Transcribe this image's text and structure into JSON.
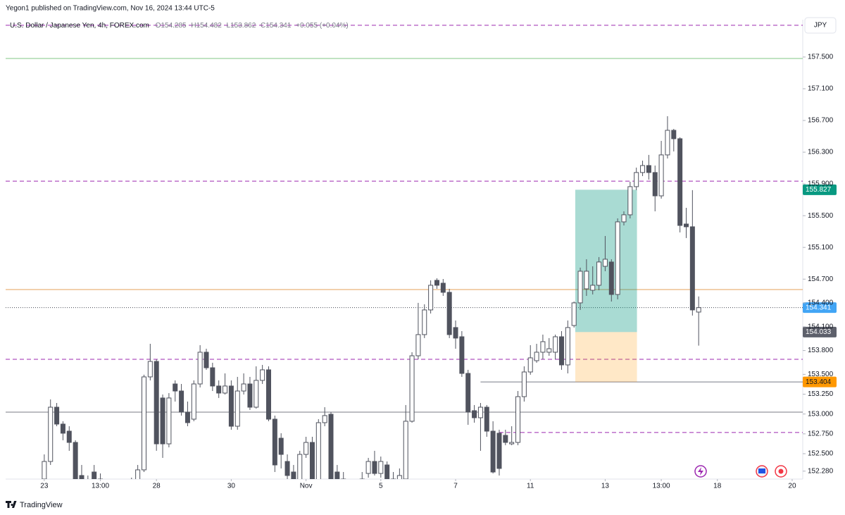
{
  "header": {
    "published": "Yegon1 published on TradingView.com, Nov 16, 2024 13:44 UTC-5",
    "currency": "JPY",
    "brand": "TradingView"
  },
  "chart_data": {
    "type": "candlestick",
    "title": "U.S. Dollar / Japanese Yen, 4h, FOREX.com",
    "ohlc_legend": [
      "O154.285",
      "H154.482",
      "L153.862",
      "C154.341",
      "+0.055 (+0.04%)"
    ],
    "up_color": "#ffffff",
    "down_color": "#50535e",
    "border_color": "#50535e",
    "open": [
      152.18,
      152.402,
      153.086,
      152.873,
      152.784,
      152.642,
      152.225,
      152.003,
      152.269,
      152.18,
      152.003,
      152.091,
      151.958,
      152.047,
      152.136,
      152.091,
      152.296,
      153.468,
      153.663,
      153.202,
      152.624,
      153.379,
      153.29,
      153.024,
      152.935,
      153.379,
      153.779,
      153.583,
      153.353,
      153.264,
      153.353,
      152.846,
      153.29,
      153.379,
      153.086,
      153.424,
      153.557,
      152.935,
      152.695,
      152.402,
      152.269,
      152.091,
      152.491,
      152.642,
      152.091,
      152.891,
      152.997,
      152.269,
      152.18,
      152.003,
      152.091,
      152.003,
      152.251,
      152.402,
      152.251,
      152.358,
      152.18,
      152.091,
      152.18,
      152.909,
      153.734,
      154.001,
      154.312,
      154.685,
      154.649,
      154.534,
      154.09,
      153.974,
      153.512,
      153.042,
      152.953,
      153.086,
      152.784,
      152.758,
      152.731,
      152.624,
      152.642,
      153.219,
      153.53,
      153.672,
      153.779,
      153.779,
      153.779,
      153.974,
      153.619,
      154.116,
      154.401,
      154.578,
      154.56,
      154.623,
      154.862,
      154.916,
      154.507,
      155.422,
      155.511,
      155.866,
      156.044,
      156.132,
      156.044,
      155.75,
      156.266,
      156.576,
      156.47,
      155.395,
      155.36,
      154.285
    ],
    "high": [
      152.491,
      153.184,
      153.139,
      152.909,
      152.846,
      152.669,
      152.358,
      152.225,
      152.358,
      152.251,
      152.136,
      152.136,
      152.136,
      152.18,
      152.198,
      152.358,
      153.495,
      153.885,
      153.69,
      153.246,
      153.264,
      153.424,
      153.379,
      153.157,
      153.424,
      153.868,
      153.823,
      153.646,
      153.424,
      153.512,
      153.424,
      153.468,
      153.512,
      153.468,
      153.601,
      153.619,
      153.601,
      152.98,
      152.758,
      152.491,
      152.358,
      152.536,
      152.713,
      152.713,
      152.935,
      153.086,
      153.024,
      152.358,
      152.269,
      152.136,
      152.18,
      152.269,
      152.447,
      152.536,
      152.464,
      152.402,
      152.269,
      152.314,
      153.113,
      153.779,
      154.401,
      154.383,
      154.685,
      154.711,
      154.702,
      154.578,
      154.179,
      154.045,
      153.557,
      153.113,
      153.139,
      153.113,
      152.909,
      152.802,
      152.802,
      152.846,
      153.29,
      153.601,
      153.868,
      153.885,
      154.001,
      153.957,
      154.001,
      154.045,
      154.179,
      154.418,
      154.845,
      154.951,
      154.862,
      154.978,
      155.244,
      154.951,
      155.466,
      155.555,
      155.928,
      156.106,
      156.194,
      156.266,
      156.132,
      156.443,
      156.754,
      156.594,
      156.488,
      155.599,
      155.822,
      154.482
    ],
    "low": [
      152.091,
      152.358,
      152.846,
      152.669,
      152.536,
      152.091,
      152.003,
      151.958,
      152.003,
      151.914,
      151.914,
      151.869,
      151.869,
      151.958,
      151.914,
      152.003,
      152.269,
      153.424,
      152.536,
      152.447,
      152.58,
      153.157,
      152.98,
      152.846,
      152.909,
      153.335,
      153.557,
      153.29,
      153.202,
      153.246,
      152.802,
      152.802,
      153.246,
      153.051,
      153.068,
      153.379,
      152.909,
      152.269,
      152.314,
      152.091,
      152.003,
      152.047,
      152.447,
      152.047,
      152.003,
      152.846,
      152.003,
      152.003,
      151.914,
      151.914,
      151.958,
      151.958,
      152.198,
      152.225,
      152.198,
      152.091,
      151.914,
      152.003,
      152.091,
      152.891,
      153.69,
      153.957,
      154.267,
      154.578,
      154.489,
      153.957,
      153.823,
      153.468,
      152.864,
      152.891,
      152.536,
      152.713,
      152.251,
      152.225,
      152.607,
      152.607,
      152.607,
      153.157,
      153.495,
      153.646,
      153.69,
      153.734,
      153.69,
      153.557,
      153.512,
      154.09,
      154.312,
      154.489,
      154.507,
      154.56,
      154.8,
      154.418,
      154.445,
      155.377,
      155.466,
      155.822,
      155.999,
      155.955,
      155.555,
      155.715,
      156.221,
      156.31,
      155.289,
      155.218,
      154.241,
      153.862
    ],
    "close": [
      152.402,
      153.086,
      152.873,
      152.758,
      152.642,
      152.18,
      152.091,
      152.136,
      152.091,
      152.003,
      152.091,
      151.958,
      152.091,
      152.136,
      152.003,
      152.296,
      153.468,
      153.663,
      152.624,
      152.624,
      153.202,
      153.29,
      153.024,
      152.891,
      153.379,
      153.779,
      153.583,
      153.353,
      153.264,
      153.353,
      152.846,
      153.29,
      153.379,
      153.086,
      153.424,
      153.557,
      152.935,
      152.358,
      152.491,
      152.225,
      152.091,
      152.491,
      152.642,
      152.091,
      152.891,
      152.98,
      152.091,
      152.091,
      152.003,
      152.091,
      152.003,
      152.18,
      152.402,
      152.251,
      152.402,
      152.18,
      152.003,
      152.225,
      152.909,
      153.734,
      154.001,
      154.312,
      154.623,
      154.623,
      154.534,
      154.001,
      153.957,
      153.512,
      153.024,
      152.953,
      153.086,
      152.784,
      152.269,
      152.314,
      152.642,
      152.642,
      153.219,
      153.53,
      153.708,
      153.779,
      153.912,
      153.823,
      153.974,
      153.619,
      154.09,
      154.401,
      154.8,
      154.8,
      154.623,
      154.916,
      154.951,
      154.507,
      155.422,
      155.511,
      155.866,
      156.044,
      156.132,
      156.044,
      155.75,
      156.266,
      156.576,
      156.47,
      155.377,
      155.36,
      154.312,
      154.341
    ],
    "xlim": [
      -6.2,
      121.7
    ],
    "xticks": [
      {
        "value": 0,
        "label": "23"
      },
      {
        "value": 9,
        "label": "13:00"
      },
      {
        "value": 18,
        "label": "28"
      },
      {
        "value": 30,
        "label": "30"
      },
      {
        "value": 42,
        "label": "Nov"
      },
      {
        "value": 54,
        "label": "5"
      },
      {
        "value": 66,
        "label": "7"
      },
      {
        "value": 78,
        "label": "11"
      },
      {
        "value": 90,
        "label": "13"
      },
      {
        "value": 99,
        "label": "13:00"
      },
      {
        "value": 108,
        "label": "18"
      },
      {
        "value": 120,
        "label": "20"
      }
    ],
    "ylim": [
      152.18,
      157.97
    ],
    "yticks": [
      {
        "value": 157.5,
        "label": "157.500"
      },
      {
        "value": 157.1,
        "label": "157.100"
      },
      {
        "value": 156.7,
        "label": "156.700"
      },
      {
        "value": 156.3,
        "label": "156.300"
      },
      {
        "value": 155.9,
        "label": "155.900"
      },
      {
        "value": 155.5,
        "label": "155.500"
      },
      {
        "value": 155.1,
        "label": "155.100"
      },
      {
        "value": 154.7,
        "label": "154.700"
      },
      {
        "value": 154.4,
        "label": "154.400"
      },
      {
        "value": 154.1,
        "label": "154.100"
      },
      {
        "value": 153.8,
        "label": "153.800"
      },
      {
        "value": 153.5,
        "label": "153.500"
      },
      {
        "value": 153.25,
        "label": "153.250"
      },
      {
        "value": 153.0,
        "label": "153.000"
      },
      {
        "value": 152.75,
        "label": "152.750"
      },
      {
        "value": 152.5,
        "label": "152.500"
      },
      {
        "value": 152.28,
        "label": "152.280"
      }
    ],
    "grid": false,
    "levels": [
      {
        "value": 157.9,
        "color": "#9c27b0",
        "style": "dashed"
      },
      {
        "value": 157.482,
        "color": "#81c784",
        "style": "solid"
      },
      {
        "value": 155.935,
        "color": "#9c27b0",
        "style": "dashed"
      },
      {
        "value": 154.569,
        "color": "#e6a15a",
        "style": "solid"
      },
      {
        "value": 154.341,
        "color": "#434651",
        "style": "dotted"
      },
      {
        "value": 153.69,
        "color": "#9c27b0",
        "style": "dashed"
      },
      {
        "value": 153.404,
        "color": "#787b86",
        "style": "solid",
        "x_start": 70
      },
      {
        "value": 153.024,
        "color": "#787b86",
        "style": "solid"
      },
      {
        "value": 152.767,
        "color": "#9c27b0",
        "style": "dashed",
        "x_start": 73
      }
    ],
    "position": {
      "entry": 154.033,
      "target": 155.827,
      "stop": 153.404,
      "x_start": 85.2,
      "x_end": 95.1,
      "target_color": "#089981",
      "stop_color": "#ff9800"
    },
    "price_badges": [
      {
        "value": 155.827,
        "label": "155.827",
        "color": "#089981"
      },
      {
        "value": 154.341,
        "label": "154.341",
        "color": "#42a5f5"
      },
      {
        "value": 154.033,
        "label": "154.033",
        "color": "#5d606b"
      },
      {
        "value": 153.404,
        "label": "153.404",
        "color": "#ff9800"
      }
    ]
  }
}
